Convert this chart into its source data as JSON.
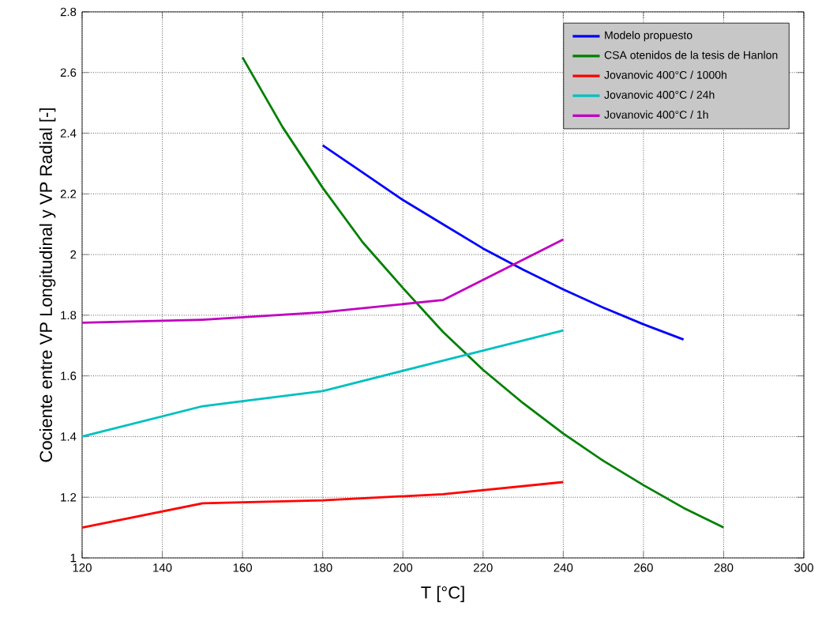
{
  "chart_data": {
    "type": "line",
    "xlabel": "T [°C]",
    "ylabel": "Cociente entre VP Longitudinal y VP Radial [-]",
    "xlim": [
      120,
      300
    ],
    "ylim": [
      1,
      2.8
    ],
    "xticks": [
      120,
      140,
      160,
      180,
      200,
      220,
      240,
      260,
      280,
      300
    ],
    "yticks": [
      1,
      1.2,
      1.4,
      1.6,
      1.8,
      2,
      2.2,
      2.4,
      2.6,
      2.8
    ],
    "grid": true,
    "legend": "top right",
    "marker": "none",
    "series": [
      {
        "name": "Modelo propuesto",
        "color": "#0000ff",
        "x": [
          180,
          190,
          200,
          210,
          220,
          230,
          240,
          250,
          260,
          270
        ],
        "values": [
          2.36,
          2.27,
          2.18,
          2.1,
          2.02,
          1.95,
          1.885,
          1.825,
          1.77,
          1.72
        ]
      },
      {
        "name": "CSA otenidos de la tesis de Hanlon",
        "color": "#008000",
        "x": [
          160,
          170,
          180,
          190,
          200,
          210,
          220,
          230,
          240,
          250,
          260,
          270,
          280
        ],
        "values": [
          2.65,
          2.42,
          2.22,
          2.04,
          1.89,
          1.745,
          1.62,
          1.51,
          1.41,
          1.32,
          1.24,
          1.165,
          1.1
        ]
      },
      {
        "name": "Jovanovic 400°C / 1000h",
        "color": "#ff0000",
        "x": [
          120,
          150,
          180,
          210,
          240
        ],
        "values": [
          1.1,
          1.18,
          1.19,
          1.21,
          1.25
        ]
      },
      {
        "name": "Jovanovic 400°C / 24h",
        "color": "#00c0c0",
        "x": [
          120,
          150,
          180,
          210,
          240
        ],
        "values": [
          1.4,
          1.5,
          1.55,
          1.65,
          1.75
        ]
      },
      {
        "name": "Jovanovic 400°C / 1h",
        "color": "#c000c0",
        "x": [
          120,
          150,
          180,
          210,
          240
        ],
        "values": [
          1.775,
          1.785,
          1.81,
          1.85,
          2.05
        ]
      }
    ]
  }
}
